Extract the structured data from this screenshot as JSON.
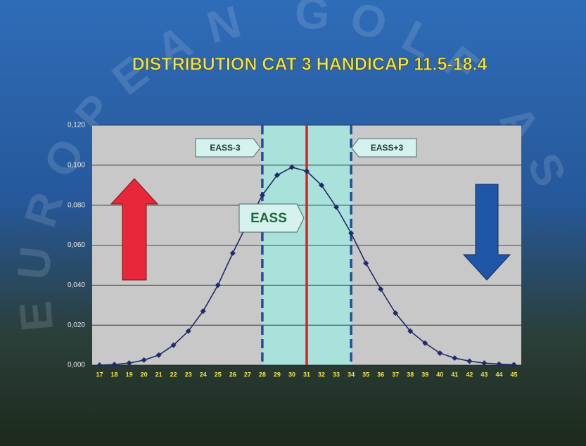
{
  "chart_data": {
    "type": "line",
    "title": "DISTRIBUTION  CAT   3    HANDICAP 11.5-18.4",
    "watermark": "EUROPEAN GOLF AS",
    "x": [
      17,
      18,
      19,
      20,
      21,
      22,
      23,
      24,
      25,
      26,
      27,
      28,
      29,
      30,
      31,
      32,
      33,
      34,
      35,
      36,
      37,
      38,
      39,
      40,
      41,
      42,
      43,
      44,
      45
    ],
    "values": [
      0.0,
      0.0003,
      0.001,
      0.0025,
      0.005,
      0.01,
      0.017,
      0.027,
      0.04,
      0.056,
      0.071,
      0.085,
      0.095,
      0.099,
      0.097,
      0.09,
      0.079,
      0.066,
      0.051,
      0.038,
      0.026,
      0.017,
      0.011,
      0.006,
      0.0035,
      0.002,
      0.001,
      0.0005,
      0.0002
    ],
    "color": "#1f2a6b",
    "xlim": [
      16.5,
      45.5
    ],
    "ylim": [
      0,
      0.12
    ],
    "yticks": [
      {
        "value": 0,
        "label": "0,000"
      },
      {
        "value": 0.02,
        "label": "0,020"
      },
      {
        "value": 0.04,
        "label": "0,040"
      },
      {
        "value": 0.06,
        "label": "0,060"
      },
      {
        "value": 0.08,
        "label": "0,080"
      },
      {
        "value": 0.1,
        "label": "0,100"
      },
      {
        "value": 0.12,
        "label": "0,120"
      }
    ],
    "grid": true,
    "markers": [
      {
        "x": 28,
        "label": "EASS-3",
        "style": "dashed",
        "color": "#1f4e9a"
      },
      {
        "x": 31,
        "label": "EASS",
        "style": "solid",
        "color": "#e02020"
      },
      {
        "x": 34,
        "label": "EASS+3",
        "style": "dashed",
        "color": "#1f4e9a"
      }
    ],
    "band_color": "#a8e2da"
  }
}
